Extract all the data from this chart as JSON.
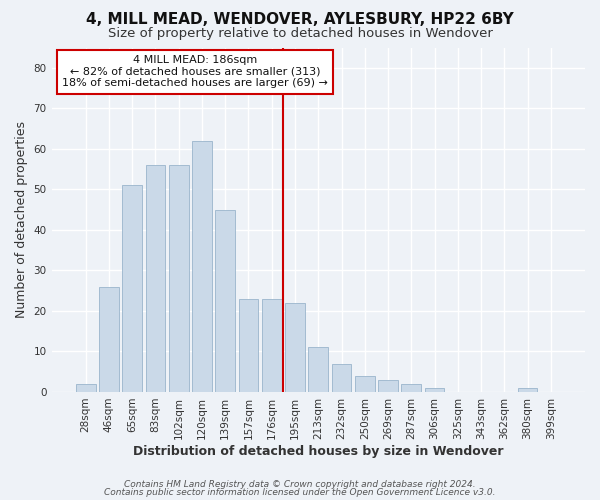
{
  "title": "4, MILL MEAD, WENDOVER, AYLESBURY, HP22 6BY",
  "subtitle": "Size of property relative to detached houses in Wendover",
  "xlabel": "Distribution of detached houses by size in Wendover",
  "ylabel": "Number of detached properties",
  "bar_labels": [
    "28sqm",
    "46sqm",
    "65sqm",
    "83sqm",
    "102sqm",
    "120sqm",
    "139sqm",
    "157sqm",
    "176sqm",
    "195sqm",
    "213sqm",
    "232sqm",
    "250sqm",
    "269sqm",
    "287sqm",
    "306sqm",
    "325sqm",
    "343sqm",
    "362sqm",
    "380sqm",
    "399sqm"
  ],
  "bar_values": [
    2,
    26,
    51,
    56,
    56,
    62,
    45,
    23,
    23,
    22,
    11,
    7,
    4,
    3,
    2,
    1,
    0,
    0,
    0,
    1,
    0
  ],
  "bar_color": "#cad9e8",
  "bar_edge_color": "#9ab5cc",
  "vline_x": 8.5,
  "vline_color": "#cc0000",
  "annotation_line1": "4 MILL MEAD: 186sqm",
  "annotation_line2": "← 82% of detached houses are smaller (313)",
  "annotation_line3": "18% of semi-detached houses are larger (69) →",
  "annotation_box_color": "#ffffff",
  "annotation_box_edge": "#cc0000",
  "ylim": [
    0,
    85
  ],
  "yticks": [
    0,
    10,
    20,
    30,
    40,
    50,
    60,
    70,
    80
  ],
  "footer_line1": "Contains HM Land Registry data © Crown copyright and database right 2024.",
  "footer_line2": "Contains public sector information licensed under the Open Government Licence v3.0.",
  "background_color": "#eef2f7",
  "grid_color": "#ffffff",
  "title_fontsize": 11,
  "subtitle_fontsize": 9.5,
  "axis_label_fontsize": 9,
  "tick_fontsize": 7.5,
  "footer_fontsize": 6.5
}
